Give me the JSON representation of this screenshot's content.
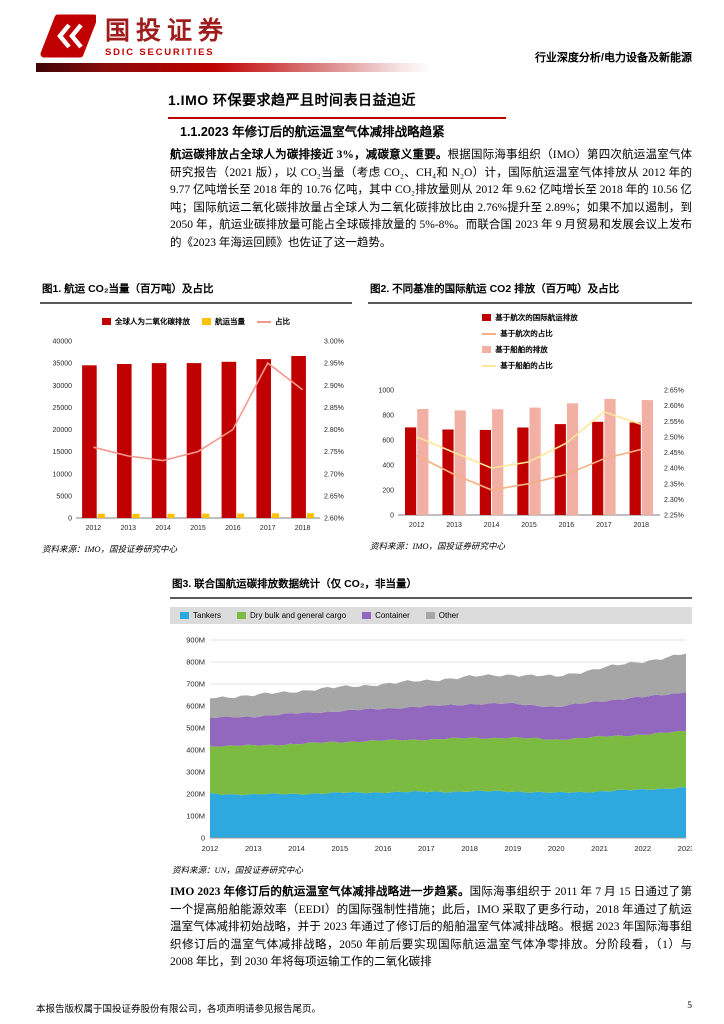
{
  "meta": {
    "brand": {
      "name_cn": "国投证券",
      "name_en": "SDIC SECURITIES"
    },
    "header_right": "行业深度分析/电力设备及新能源",
    "footer_left": "本报告版权属于国投证券股份有限公司，各项声明请参见报告尾页。",
    "page_number": "5",
    "accent_red": "#C00000"
  },
  "sections": {
    "h1": "1.IMO 环保要求趋严且时间表日益迫近",
    "h2": "1.1.2023 年修订后的航运温室气体减排战略趋紧",
    "para1_bold": "航运碳排放占全球人为碳排接近 3%，减碳意义重要。",
    "para1_rest": "根据国际海事组织（IMO）第四次航运温室气体研究报告（2021 版），以 CO₂当量（考虑 CO₂、CH₄和 N₂O）计，国际航运温室气体排放从 2012 年的 9.77 亿吨增长至 2018 年的 10.76 亿吨，其中 CO₂排放量则从 2012 年 9.62 亿吨增长至 2018 年的 10.56 亿吨；国际航运二氧化碳排放量占全球人为二氧化碳排放比由 2.76%提升至 2.89%；如果不加以遏制，到 2050 年，航运业碳排放量可能占全球碳排放量的 5%-8%。而联合国 2023 年 9 月贸易和发展会议上发布的《2023 年海运回顾》也佐证了这一趋势。",
    "para2_bold": "IMO 2023 年修订后的航运温室气体减排战略进一步趋紧。",
    "para2_rest": "国际海事组织于 2011 年 7 月 15 日通过了第一个提高船舶能源效率（EEDI）的国际强制性措施；此后，IMO 采取了更多行动，2018 年通过了航运温室气体减排初始战略，并于 2023 年通过了修订后的船舶温室气体减排战略。根据 2023 年国际海事组织修订后的温室气体减排战略，2050 年前后要实现国际航运温室气体净零排放。分阶段看，（1）与 2008 年比，到 2030 年将每项运输工作的二氧化碳排"
  },
  "figures": [
    {
      "title": "图1. 航运 CO₂当量（百万吨）及占比",
      "source": "资料来源：IMO，国投证券研究中心"
    },
    {
      "title": "图2. 不同基准的国际航运 CO2 排放（百万吨）及占比",
      "source": "资料来源：IMO，国投证券研究中心"
    },
    {
      "title": "图3. 联合国航运碳排放数据统计（仅 CO₂，非当量）",
      "source": "资料来源：UN，国投证券研究中心"
    }
  ],
  "chart_data": [
    {
      "type": "bar",
      "title": "航运 CO₂当量（百万吨）及占比",
      "categories": [
        "2012",
        "2013",
        "2014",
        "2015",
        "2016",
        "2017",
        "2018"
      ],
      "series": [
        {
          "name": "全球人为二氧化碳排放",
          "type": "bar",
          "axis": "left",
          "color": "#C00000",
          "wfrac": 0.42,
          "values": [
            34500,
            34800,
            35000,
            35000,
            35300,
            35900,
            36600
          ]
        },
        {
          "name": "航运当量",
          "type": "bar",
          "axis": "left",
          "color": "#FFC000",
          "wfrac": 0.2,
          "values": [
            977,
            957,
            964,
            991,
            1026,
            1064,
            1076
          ]
        },
        {
          "name": "占比",
          "type": "line",
          "axis": "right",
          "color": "#F4978E",
          "values": [
            2.76,
            2.74,
            2.73,
            2.75,
            2.8,
            2.95,
            2.89
          ]
        }
      ],
      "left_axis": {
        "min": 0,
        "max": 40000,
        "step": 5000
      },
      "right_axis": {
        "min": 2.6,
        "max": 3.0,
        "step": 0.05,
        "suffix": "%"
      },
      "legend_position": "top"
    },
    {
      "type": "bar",
      "title": "不同基准的国际航运 CO2 排放（百万吨）及占比",
      "categories": [
        "2012",
        "2013",
        "2014",
        "2015",
        "2016",
        "2017",
        "2018"
      ],
      "series": [
        {
          "name": "基于航次的国际航运排放",
          "type": "bar",
          "axis": "left",
          "color": "#C00000",
          "wfrac": 0.3,
          "values": [
            701,
            684,
            681,
            700,
            727,
            746,
            740
          ]
        },
        {
          "name": "基于航次的占比",
          "type": "line",
          "axis": "right",
          "color": "#F4B183",
          "values": [
            2.44,
            2.38,
            2.33,
            2.35,
            2.38,
            2.43,
            2.46
          ]
        },
        {
          "name": "基于船舶的排放",
          "type": "bar",
          "axis": "left",
          "color": "#F2AFA4",
          "wfrac": 0.3,
          "values": [
            848,
            837,
            846,
            859,
            894,
            929,
            919
          ]
        },
        {
          "name": "基于船舶的占比",
          "type": "line",
          "axis": "right",
          "color": "#FFE699",
          "values": [
            2.5,
            2.45,
            2.4,
            2.42,
            2.48,
            2.58,
            2.54
          ]
        }
      ],
      "left_axis": {
        "min": 0,
        "max": 1000,
        "step": 200
      },
      "right_axis": {
        "min": 2.25,
        "max": 2.65,
        "step": 0.05,
        "suffix": "%"
      },
      "legend_position": "top-vertical"
    },
    {
      "type": "area",
      "stacked": true,
      "title": "联合国航运碳排放数据统计（仅 CO₂，非当量）",
      "x": [
        "2012",
        "2013",
        "2014",
        "2015",
        "2016",
        "2017",
        "2018",
        "2019",
        "2020",
        "2021",
        "2022",
        "2023"
      ],
      "series": [
        {
          "name": "Tankers",
          "color": "#2EA9DF",
          "values": [
            200,
            198,
            200,
            205,
            208,
            210,
            212,
            212,
            205,
            212,
            220,
            230
          ]
        },
        {
          "name": "Dry bulk and general cargo",
          "color": "#7CBB42",
          "values": [
            218,
            222,
            228,
            232,
            235,
            238,
            242,
            244,
            242,
            248,
            250,
            255
          ]
        },
        {
          "name": "Container",
          "color": "#9268BE",
          "values": [
            128,
            132,
            138,
            140,
            145,
            150,
            155,
            155,
            148,
            162,
            170,
            178
          ]
        },
        {
          "name": "Other",
          "color": "#A6A6A6",
          "values": [
            92,
            96,
            102,
            108,
            112,
            118,
            124,
            132,
            138,
            150,
            162,
            175
          ]
        }
      ],
      "y_axis": {
        "min": 0,
        "max": 900,
        "step": 100,
        "suffix": "M"
      }
    }
  ]
}
